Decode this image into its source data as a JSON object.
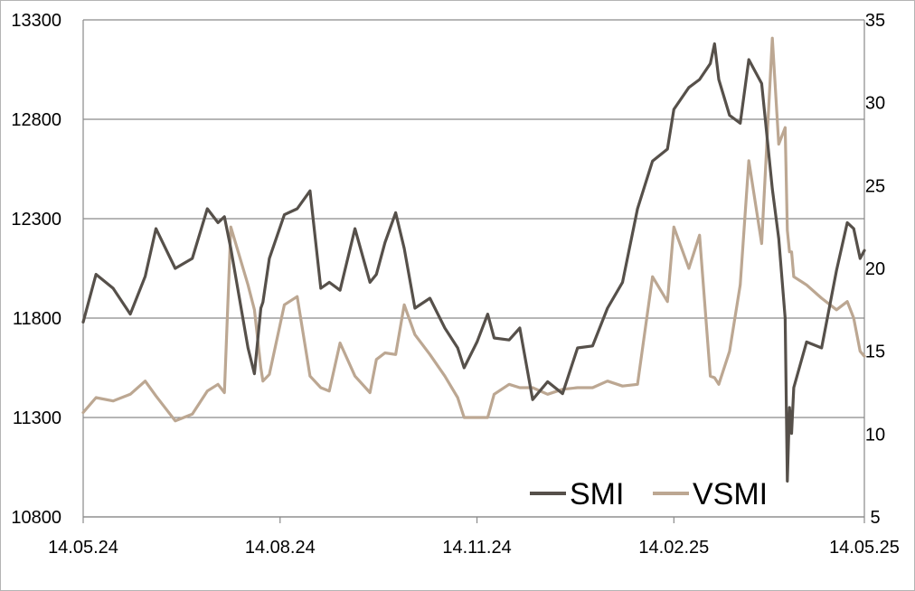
{
  "chart_data": {
    "type": "line",
    "title": "",
    "xlabel": "",
    "ylabel": "",
    "x_tick_labels": [
      "14.05.24",
      "14.08.24",
      "14.11.24",
      "14.02.25",
      "14.05.25"
    ],
    "y_left": {
      "range": [
        10800,
        13300
      ],
      "ticks": [
        "10800",
        "11300",
        "11800",
        "12300",
        "12800",
        "13300"
      ]
    },
    "y_right": {
      "range": [
        5,
        35
      ],
      "ticks": [
        "5",
        "10",
        "15",
        "20",
        "25",
        "30",
        "35"
      ]
    },
    "grid": "horizontal",
    "legend": "bottom-right",
    "series": [
      {
        "name": "SMI",
        "axis": "left",
        "color": "#56504a",
        "x": [
          "14.05.24",
          "20.05.24",
          "28.05.24",
          "05.06.24",
          "12.06.24",
          "17.06.24",
          "26.06.24",
          "04.07.24",
          "11.07.24",
          "16.07.24",
          "19.07.24",
          "22.07.24",
          "30.07.24",
          "02.08.24",
          "05.08.24",
          "06.08.24",
          "09.08.24",
          "16.08.24",
          "22.08.24",
          "28.08.24",
          "02.09.24",
          "06.09.24",
          "11.09.24",
          "18.09.24",
          "25.09.24",
          "28.09.24",
          "02.10.24",
          "07.10.24",
          "11.10.24",
          "16.10.24",
          "23.10.24",
          "30.10.24",
          "05.11.24",
          "08.11.24",
          "14.11.24",
          "19.11.24",
          "22.11.24",
          "29.11.24",
          "04.12.24",
          "10.12.24",
          "17.12.24",
          "24.12.24",
          "31.12.24",
          "07.01.25",
          "14.01.25",
          "21.01.25",
          "28.01.25",
          "04.02.25",
          "11.02.25",
          "14.02.25",
          "21.02.25",
          "26.02.25",
          "03.03.25",
          "05.03.25",
          "07.03.25",
          "12.03.25",
          "17.03.25",
          "21.03.25",
          "27.03.25",
          "01.04.25",
          "04.04.25",
          "07.04.25",
          "08.04.25",
          "09.04.25",
          "10.04.25",
          "11.04.25",
          "17.04.25",
          "24.04.25",
          "01.05.25",
          "06.05.25",
          "09.05.25",
          "12.05.25",
          "14.05.25"
        ],
        "values": [
          11780,
          12020,
          11950,
          11820,
          12010,
          12250,
          12050,
          12100,
          12350,
          12280,
          12310,
          12150,
          11650,
          11520,
          11850,
          11880,
          12100,
          12320,
          12350,
          12440,
          11950,
          11980,
          11940,
          12250,
          11980,
          12020,
          12180,
          12330,
          12150,
          11850,
          11900,
          11750,
          11650,
          11550,
          11680,
          11820,
          11700,
          11690,
          11750,
          11390,
          11480,
          11420,
          11650,
          11660,
          11850,
          11980,
          12350,
          12590,
          12650,
          12850,
          12960,
          13000,
          13080,
          13180,
          13000,
          12820,
          12780,
          13100,
          12980,
          12450,
          12200,
          11800,
          10980,
          11350,
          11220,
          11450,
          11680,
          11650,
          12040,
          12280,
          12250,
          12100,
          12140
        ]
      },
      {
        "name": "VSMI",
        "axis": "right",
        "color": "#bca792",
        "x": [
          "14.05.24",
          "20.05.24",
          "28.05.24",
          "05.06.24",
          "12.06.24",
          "17.06.24",
          "26.06.24",
          "04.07.24",
          "11.07.24",
          "16.07.24",
          "19.07.24",
          "22.07.24",
          "30.07.24",
          "02.08.24",
          "05.08.24",
          "06.08.24",
          "09.08.24",
          "16.08.24",
          "22.08.24",
          "28.08.24",
          "02.09.24",
          "06.09.24",
          "11.09.24",
          "18.09.24",
          "25.09.24",
          "28.09.24",
          "02.10.24",
          "07.10.24",
          "11.10.24",
          "16.10.24",
          "23.10.24",
          "30.10.24",
          "05.11.24",
          "08.11.24",
          "14.11.24",
          "19.11.24",
          "22.11.24",
          "29.11.24",
          "04.12.24",
          "10.12.24",
          "17.12.24",
          "24.12.24",
          "31.12.24",
          "07.01.25",
          "14.01.25",
          "21.01.25",
          "28.01.25",
          "04.02.25",
          "11.02.25",
          "14.02.25",
          "21.02.25",
          "26.02.25",
          "03.03.25",
          "05.03.25",
          "07.03.25",
          "12.03.25",
          "17.03.25",
          "21.03.25",
          "27.03.25",
          "01.04.25",
          "04.04.25",
          "07.04.25",
          "08.04.25",
          "09.04.25",
          "10.04.25",
          "11.04.25",
          "17.04.25",
          "24.04.25",
          "01.05.25",
          "06.05.25",
          "09.05.25",
          "12.05.25",
          "14.05.25"
        ],
        "values": [
          11.3,
          12.2,
          12.0,
          12.4,
          13.2,
          12.3,
          10.8,
          11.2,
          12.6,
          13.0,
          12.5,
          22.5,
          19.0,
          17.5,
          14.0,
          13.2,
          13.6,
          17.8,
          18.3,
          13.5,
          12.8,
          12.6,
          15.5,
          13.5,
          12.5,
          14.5,
          14.9,
          14.8,
          17.8,
          16.0,
          14.8,
          13.5,
          12.2,
          11.0,
          11.0,
          11.0,
          12.4,
          13.0,
          12.8,
          12.8,
          12.4,
          12.7,
          12.8,
          12.8,
          13.2,
          12.9,
          13.0,
          19.5,
          18.0,
          22.5,
          20.0,
          22.0,
          13.5,
          13.4,
          13.0,
          15.0,
          19.0,
          26.5,
          21.5,
          33.9,
          27.5,
          28.5,
          22.3,
          21.0,
          21.0,
          19.5,
          19.0,
          18.2,
          17.5,
          18.0,
          17.0,
          15.0,
          14.7
        ]
      }
    ]
  }
}
